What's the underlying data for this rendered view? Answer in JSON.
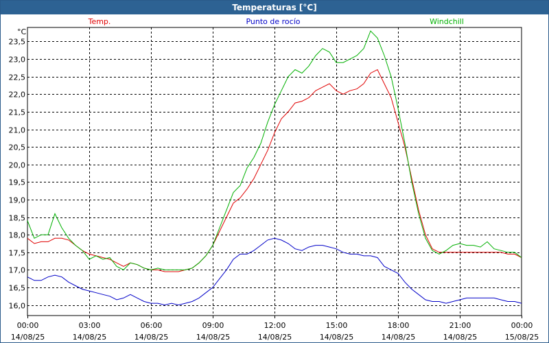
{
  "window": {
    "title": "Temperaturas [°C]"
  },
  "chart_data": {
    "type": "line",
    "title": "Temperaturas [°C]",
    "ylabel": "°C",
    "ylim": [
      15.7,
      23.9
    ],
    "xlim": [
      0,
      1440
    ],
    "y_ticks": [
      "16,0",
      "16,5",
      "17,0",
      "17,5",
      "18,0",
      "18,5",
      "19,0",
      "19,5",
      "20,0",
      "20,5",
      "21,0",
      "21,5",
      "22,0",
      "22,5",
      "23,0",
      "23,5"
    ],
    "y_tick_values": [
      16.0,
      16.5,
      17.0,
      17.5,
      18.0,
      18.5,
      19.0,
      19.5,
      20.0,
      20.5,
      21.0,
      21.5,
      22.0,
      22.5,
      23.0,
      23.5
    ],
    "x_ticks": [
      {
        "minute": 0,
        "time": "00:00",
        "date": "14/08/25"
      },
      {
        "minute": 180,
        "time": "03:00",
        "date": "14/08/25"
      },
      {
        "minute": 360,
        "time": "06:00",
        "date": "14/08/25"
      },
      {
        "minute": 540,
        "time": "09:00",
        "date": "14/08/25"
      },
      {
        "minute": 720,
        "time": "12:00",
        "date": "14/08/25"
      },
      {
        "minute": 900,
        "time": "15:00",
        "date": "14/08/25"
      },
      {
        "minute": 1080,
        "time": "18:00",
        "date": "14/08/25"
      },
      {
        "minute": 1260,
        "time": "21:00",
        "date": "14/08/25"
      },
      {
        "minute": 1440,
        "time": "00:00",
        "date": "15/08/25"
      }
    ],
    "grid": true,
    "series": [
      {
        "name": "Temp.",
        "color": "#e00000",
        "x": [
          0,
          20,
          40,
          60,
          80,
          100,
          120,
          140,
          160,
          180,
          200,
          220,
          240,
          260,
          280,
          300,
          320,
          340,
          360,
          380,
          400,
          420,
          440,
          460,
          480,
          500,
          520,
          540,
          560,
          580,
          600,
          620,
          640,
          660,
          680,
          700,
          720,
          740,
          760,
          780,
          800,
          820,
          840,
          860,
          880,
          900,
          920,
          940,
          960,
          980,
          1000,
          1020,
          1040,
          1060,
          1080,
          1100,
          1120,
          1140,
          1160,
          1180,
          1200,
          1220,
          1240,
          1260,
          1280,
          1300,
          1320,
          1340,
          1360,
          1380,
          1400,
          1420,
          1440
        ],
        "values": [
          17.9,
          17.75,
          17.8,
          17.8,
          17.9,
          17.9,
          17.85,
          17.7,
          17.55,
          17.45,
          17.4,
          17.35,
          17.3,
          17.2,
          17.1,
          17.2,
          17.15,
          17.05,
          17.0,
          17.0,
          16.95,
          16.95,
          16.95,
          17.0,
          17.05,
          17.2,
          17.4,
          17.7,
          18.1,
          18.5,
          18.9,
          19.05,
          19.3,
          19.6,
          20.0,
          20.4,
          20.9,
          21.3,
          21.5,
          21.75,
          21.8,
          21.9,
          22.1,
          22.2,
          22.3,
          22.1,
          22.0,
          22.1,
          22.15,
          22.3,
          22.6,
          22.7,
          22.3,
          21.9,
          21.2,
          20.5,
          19.6,
          18.7,
          18.0,
          17.6,
          17.5,
          17.5,
          17.5,
          17.5,
          17.5,
          17.5,
          17.5,
          17.5,
          17.5,
          17.5,
          17.45,
          17.45,
          17.35
        ]
      },
      {
        "name": "Punto de rocío",
        "color": "#0000c8",
        "x": [
          0,
          20,
          40,
          60,
          80,
          100,
          120,
          140,
          160,
          180,
          200,
          220,
          240,
          260,
          280,
          300,
          320,
          340,
          360,
          380,
          400,
          420,
          440,
          460,
          480,
          500,
          520,
          540,
          560,
          580,
          600,
          620,
          640,
          660,
          680,
          700,
          720,
          740,
          760,
          780,
          800,
          820,
          840,
          860,
          880,
          900,
          920,
          940,
          960,
          980,
          1000,
          1020,
          1040,
          1060,
          1080,
          1100,
          1120,
          1140,
          1160,
          1180,
          1200,
          1220,
          1240,
          1260,
          1280,
          1300,
          1320,
          1340,
          1360,
          1380,
          1400,
          1420,
          1440
        ],
        "values": [
          16.8,
          16.7,
          16.7,
          16.8,
          16.85,
          16.8,
          16.65,
          16.55,
          16.45,
          16.4,
          16.35,
          16.3,
          16.25,
          16.15,
          16.2,
          16.3,
          16.2,
          16.1,
          16.05,
          16.05,
          16.0,
          16.05,
          16.0,
          16.05,
          16.1,
          16.2,
          16.35,
          16.5,
          16.75,
          17.0,
          17.3,
          17.45,
          17.45,
          17.55,
          17.7,
          17.85,
          17.9,
          17.85,
          17.75,
          17.6,
          17.55,
          17.65,
          17.7,
          17.7,
          17.65,
          17.6,
          17.5,
          17.45,
          17.45,
          17.4,
          17.4,
          17.35,
          17.1,
          17.0,
          16.9,
          16.65,
          16.45,
          16.3,
          16.15,
          16.1,
          16.1,
          16.05,
          16.1,
          16.15,
          16.2,
          16.2,
          16.2,
          16.2,
          16.2,
          16.15,
          16.1,
          16.1,
          16.05
        ]
      },
      {
        "name": "Windchill",
        "color": "#00b000",
        "x": [
          0,
          20,
          40,
          60,
          80,
          100,
          120,
          140,
          160,
          180,
          200,
          220,
          240,
          260,
          280,
          300,
          320,
          340,
          360,
          380,
          400,
          420,
          440,
          460,
          480,
          500,
          520,
          540,
          560,
          580,
          600,
          620,
          640,
          660,
          680,
          700,
          720,
          740,
          760,
          780,
          800,
          820,
          840,
          860,
          880,
          900,
          920,
          940,
          960,
          980,
          1000,
          1020,
          1040,
          1060,
          1080,
          1100,
          1120,
          1140,
          1160,
          1180,
          1200,
          1220,
          1240,
          1260,
          1280,
          1300,
          1320,
          1340,
          1360,
          1380,
          1400,
          1420,
          1440
        ],
        "values": [
          18.4,
          17.9,
          18.0,
          18.0,
          18.6,
          18.2,
          17.9,
          17.7,
          17.55,
          17.3,
          17.4,
          17.3,
          17.35,
          17.1,
          17.0,
          17.2,
          17.15,
          17.05,
          17.0,
          17.05,
          17.0,
          17.0,
          17.0,
          17.0,
          17.05,
          17.2,
          17.4,
          17.7,
          18.2,
          18.7,
          19.2,
          19.4,
          19.9,
          20.2,
          20.6,
          21.2,
          21.7,
          22.1,
          22.5,
          22.7,
          22.6,
          22.8,
          23.1,
          23.3,
          23.2,
          22.9,
          22.9,
          23.0,
          23.1,
          23.3,
          23.8,
          23.6,
          23.1,
          22.5,
          21.6,
          20.6,
          19.5,
          18.6,
          17.9,
          17.55,
          17.45,
          17.55,
          17.7,
          17.75,
          17.7,
          17.7,
          17.65,
          17.8,
          17.6,
          17.55,
          17.5,
          17.5,
          17.35
        ]
      }
    ]
  }
}
